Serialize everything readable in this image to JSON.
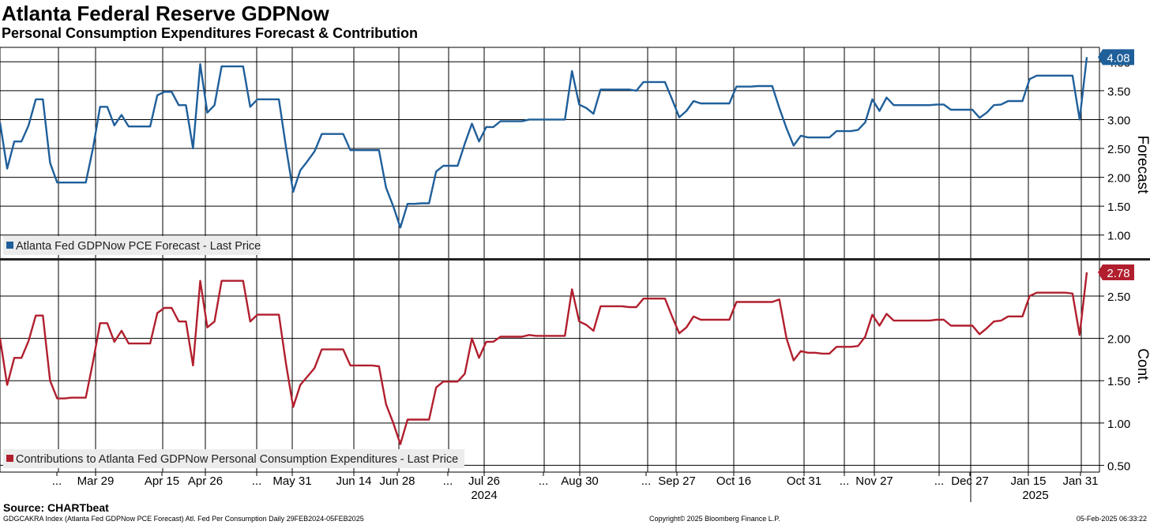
{
  "header": {
    "title": "Atlanta Federal Reserve GDPNow",
    "subtitle": "Personal Consumption Expenditures Forecast & Contribution"
  },
  "footer": {
    "source": "Source: CHARTbeat",
    "index_info": "GDGCAKRA Index (Atlanta Fed GDPNow PCE Forecast) Atl. Fed Per Consumption  Daily 29FEB2024-05FEB2025",
    "copyright": "Copyright© 2025 Bloomberg Finance L.P.",
    "timestamp": "05-Feb-2025 06:33:22"
  },
  "chart_data": [
    {
      "type": "line",
      "panel": "top",
      "ylabel": "Forecast",
      "ylim": [
        0.6,
        4.25
      ],
      "yticks": [
        "1.00",
        "1.50",
        "2.00",
        "2.50",
        "3.00",
        "3.50",
        "4.00"
      ],
      "grid": true,
      "legend_position": "bottom-left",
      "color": "#1f5f9a",
      "series": [
        {
          "name": "Atlanta Fed GDPNow PCE Forecast - Last Price",
          "last_value_label": "4.08",
          "values": [
            2.95,
            2.15,
            2.62,
            2.62,
            2.9,
            3.35,
            3.35,
            2.25,
            1.91,
            1.91,
            1.91,
            1.91,
            1.91,
            2.5,
            3.22,
            3.22,
            2.9,
            3.08,
            2.88,
            2.88,
            2.88,
            2.88,
            3.42,
            3.48,
            3.48,
            3.25,
            3.25,
            2.5,
            3.96,
            3.12,
            3.25,
            3.92,
            3.92,
            3.92,
            3.92,
            3.22,
            3.35,
            3.35,
            3.35,
            3.35,
            2.52,
            1.75,
            2.12,
            2.28,
            2.45,
            2.75,
            2.75,
            2.75,
            2.75,
            2.47,
            2.47,
            2.47,
            2.47,
            2.47,
            1.82,
            1.5,
            1.13,
            1.54,
            1.54,
            1.55,
            1.55,
            2.1,
            2.2,
            2.2,
            2.2,
            2.58,
            2.93,
            2.62,
            2.87,
            2.87,
            2.97,
            2.97,
            2.97,
            2.97,
            3.0,
            3.0,
            3.0,
            3.0,
            3.0,
            3.0,
            3.84,
            3.26,
            3.2,
            3.1,
            3.52,
            3.52,
            3.52,
            3.52,
            3.52,
            3.5,
            3.65,
            3.65,
            3.65,
            3.65,
            3.35,
            3.04,
            3.15,
            3.32,
            3.28,
            3.28,
            3.28,
            3.28,
            3.28,
            3.57,
            3.57,
            3.57,
            3.58,
            3.58,
            3.58,
            3.2,
            2.85,
            2.55,
            2.72,
            2.69,
            2.69,
            2.69,
            2.69,
            2.8,
            2.8,
            2.8,
            2.82,
            2.95,
            3.35,
            3.15,
            3.38,
            3.25,
            3.25,
            3.25,
            3.25,
            3.25,
            3.25,
            3.26,
            3.26,
            3.17,
            3.17,
            3.17,
            3.17,
            3.03,
            3.12,
            3.25,
            3.26,
            3.32,
            3.32,
            3.32,
            3.7,
            3.76,
            3.76,
            3.76,
            3.76,
            3.76,
            3.76,
            3.0,
            4.08
          ]
        }
      ]
    },
    {
      "type": "line",
      "panel": "bottom",
      "ylabel": "Cont.",
      "ylim": [
        0.42,
        2.92
      ],
      "yticks": [
        "0.50",
        "1.00",
        "1.50",
        "2.00",
        "2.50"
      ],
      "grid": true,
      "legend_position": "bottom-left",
      "color": "#b11f2e",
      "series": [
        {
          "name": "Contributions to Atlanta Fed GDPNow Personal Consumption Expenditures - Last Price",
          "last_value_label": "2.78",
          "values": [
            2.0,
            1.45,
            1.77,
            1.77,
            1.97,
            2.27,
            2.27,
            1.5,
            1.29,
            1.29,
            1.3,
            1.3,
            1.3,
            1.72,
            2.18,
            2.18,
            1.96,
            2.09,
            1.94,
            1.94,
            1.94,
            1.94,
            2.3,
            2.36,
            2.36,
            2.2,
            2.2,
            1.68,
            2.68,
            2.13,
            2.2,
            2.68,
            2.68,
            2.68,
            2.68,
            2.2,
            2.28,
            2.28,
            2.28,
            2.28,
            1.7,
            1.19,
            1.45,
            1.55,
            1.65,
            1.87,
            1.87,
            1.87,
            1.87,
            1.68,
            1.68,
            1.68,
            1.68,
            1.67,
            1.22,
            1.0,
            0.75,
            1.04,
            1.04,
            1.04,
            1.04,
            1.42,
            1.49,
            1.49,
            1.49,
            1.58,
            2.0,
            1.77,
            1.96,
            1.96,
            2.02,
            2.02,
            2.02,
            2.02,
            2.04,
            2.03,
            2.03,
            2.03,
            2.03,
            2.03,
            2.58,
            2.2,
            2.16,
            2.09,
            2.38,
            2.38,
            2.38,
            2.38,
            2.37,
            2.37,
            2.47,
            2.47,
            2.47,
            2.47,
            2.26,
            2.06,
            2.13,
            2.26,
            2.22,
            2.22,
            2.22,
            2.22,
            2.22,
            2.43,
            2.43,
            2.43,
            2.43,
            2.43,
            2.43,
            2.46,
            2.0,
            1.74,
            1.85,
            1.83,
            1.83,
            1.82,
            1.82,
            1.9,
            1.9,
            1.9,
            1.91,
            2.02,
            2.28,
            2.15,
            2.29,
            2.21,
            2.21,
            2.21,
            2.21,
            2.21,
            2.21,
            2.22,
            2.22,
            2.15,
            2.15,
            2.15,
            2.15,
            2.05,
            2.12,
            2.2,
            2.21,
            2.26,
            2.26,
            2.26,
            2.5,
            2.54,
            2.54,
            2.54,
            2.54,
            2.54,
            2.53,
            2.04,
            2.78
          ]
        }
      ]
    },
    {
      "type": "x-axis",
      "tick_labels": [
        "...",
        "Mar 29",
        "Apr 15",
        "Apr 26",
        "...",
        "May 31",
        "Jun 14",
        "Jun 28",
        "...",
        "Jul 26",
        "...",
        "Aug 30",
        "...",
        "Sep 27",
        "Oct 16",
        "Oct 31",
        "...",
        "Nov 27",
        "...",
        "Dec 27",
        "Jan 15",
        "Jan 31"
      ],
      "year_labels": [
        "2024",
        "2025"
      ]
    }
  ]
}
